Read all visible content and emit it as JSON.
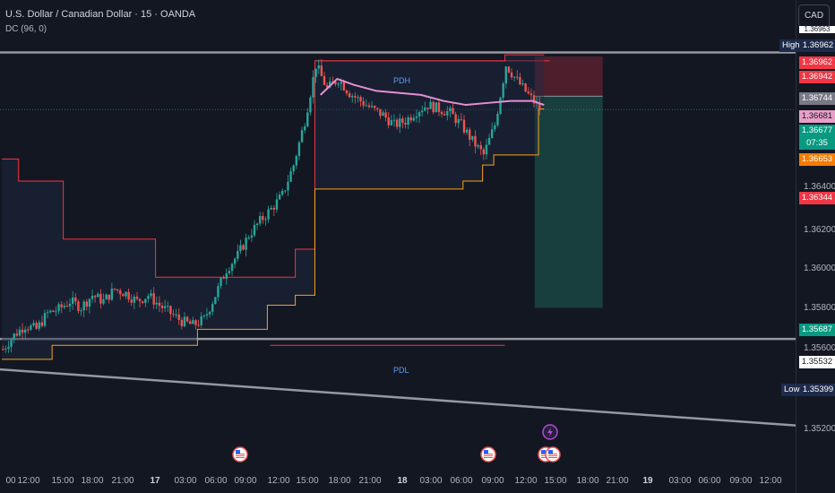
{
  "header": {
    "title": "U.S. Dollar / Canadian Dollar · 15 · OANDA",
    "indicator": "DC (96, 0)"
  },
  "currency_button": "CAD",
  "y_axis_ticks": [
    "1.36400",
    "1.36200",
    "1.36000",
    "1.35800",
    "1.35600",
    "1.35200"
  ],
  "price_tags": {
    "top_partial": "1.36963",
    "high_label": "High",
    "high_value": "1.36962",
    "t1": "1.36962",
    "t2": "1.36942",
    "t3": "1.36744",
    "t4": "1.36681",
    "last": "1.36677",
    "countdown": "07:35",
    "t6": "1.36653",
    "t7": "1.36344",
    "t8": "1.35687",
    "t9": "1.35532",
    "low_label": "Low",
    "low_value": "1.35399"
  },
  "x_axis_ticks": [
    {
      "label": "00",
      "bold": false
    },
    {
      "label": "12:00",
      "bold": false
    },
    {
      "label": "15:00",
      "bold": false
    },
    {
      "label": "18:00",
      "bold": false
    },
    {
      "label": "21:00",
      "bold": false
    },
    {
      "label": "17",
      "bold": true
    },
    {
      "label": "03:00",
      "bold": false
    },
    {
      "label": "06:00",
      "bold": false
    },
    {
      "label": "09:00",
      "bold": false
    },
    {
      "label": "12:00",
      "bold": false
    },
    {
      "label": "15:00",
      "bold": false
    },
    {
      "label": "18:00",
      "bold": false
    },
    {
      "label": "21:00",
      "bold": false
    },
    {
      "label": "18",
      "bold": true
    },
    {
      "label": "03:00",
      "bold": false
    },
    {
      "label": "06:00",
      "bold": false
    },
    {
      "label": "09:00",
      "bold": false
    },
    {
      "label": "12:00",
      "bold": false
    },
    {
      "label": "15:00",
      "bold": false
    },
    {
      "label": "18:00",
      "bold": false
    },
    {
      "label": "21:00",
      "bold": false
    },
    {
      "label": "19",
      "bold": true
    },
    {
      "label": "03:00",
      "bold": false
    },
    {
      "label": "06:00",
      "bold": false
    },
    {
      "label": "09:00",
      "bold": false
    },
    {
      "label": "12:00",
      "bold": false
    }
  ],
  "annotations": {
    "pdh": "PDH",
    "pdl": "PDL"
  },
  "colors": {
    "background": "#131722",
    "up": "#26a69a",
    "down": "#ef5350",
    "donchian_upper": "#f23645",
    "donchian_lower": "#f7a21b",
    "basis": "#e58fd1",
    "level_line": "#9598a1",
    "pdh_pdl": "#f23645",
    "label_blue": "#5b9cf6",
    "stop_zone": "#5c2030",
    "target_zone": "#1a4a45",
    "orange_tag": "#f57c00",
    "teal_tag": "#089981",
    "red_tag": "#f23645",
    "grey_tag": "#787b86",
    "pink_tag": "#e8a0c8"
  },
  "event_icons": [
    "us-flag-icon",
    "us-flag-icon",
    "us-flag-icon",
    "lightning-icon",
    "us-flag-icon"
  ],
  "chart_data": {
    "type": "candlestick",
    "instrument": "U.S. Dollar / Canadian Dollar",
    "timeframe": "15",
    "source": "OANDA",
    "x_start": "16 00:00",
    "ylim": [
      1.3505,
      1.3705
    ],
    "y_ticks": [
      1.364,
      1.362,
      1.36,
      1.358,
      1.356,
      1.352
    ],
    "close_path": [
      [
        0,
        1.3548
      ],
      [
        4,
        1.3555
      ],
      [
        8,
        1.356
      ],
      [
        12,
        1.3558
      ],
      [
        16,
        1.3566
      ],
      [
        20,
        1.3568
      ],
      [
        24,
        1.3572
      ],
      [
        28,
        1.3569
      ],
      [
        32,
        1.3575
      ],
      [
        36,
        1.3572
      ],
      [
        40,
        1.3578
      ],
      [
        44,
        1.3576
      ],
      [
        48,
        1.3572
      ],
      [
        52,
        1.3575
      ],
      [
        56,
        1.357
      ],
      [
        60,
        1.3566
      ],
      [
        64,
        1.3562
      ],
      [
        68,
        1.356
      ],
      [
        72,
        1.3563
      ],
      [
        76,
        1.3575
      ],
      [
        80,
        1.3588
      ],
      [
        84,
        1.3595
      ],
      [
        88,
        1.3605
      ],
      [
        92,
        1.3612
      ],
      [
        96,
        1.3618
      ],
      [
        100,
        1.3625
      ],
      [
        104,
        1.364
      ],
      [
        108,
        1.3662
      ],
      [
        112,
        1.369
      ],
      [
        116,
        1.3678
      ],
      [
        120,
        1.3683
      ],
      [
        124,
        1.3676
      ],
      [
        128,
        1.3672
      ],
      [
        132,
        1.3668
      ],
      [
        136,
        1.3665
      ],
      [
        140,
        1.366
      ],
      [
        144,
        1.3662
      ],
      [
        148,
        1.3667
      ],
      [
        152,
        1.367
      ],
      [
        156,
        1.3668
      ],
      [
        160,
        1.3666
      ],
      [
        164,
        1.366
      ],
      [
        168,
        1.3652
      ],
      [
        172,
        1.3645
      ],
      [
        176,
        1.366
      ],
      [
        180,
        1.369
      ],
      [
        184,
        1.3682
      ],
      [
        188,
        1.3675
      ],
      [
        192,
        1.3668
      ]
    ],
    "donchian_upper": [
      [
        0,
        1.3643
      ],
      [
        6,
        1.3632
      ],
      [
        22,
        1.3603
      ],
      [
        55,
        1.3584
      ],
      [
        105,
        1.3598
      ],
      [
        112,
        1.3692
      ],
      [
        180,
        1.3695
      ],
      [
        192,
        1.3695
      ]
    ],
    "donchian_lower": [
      [
        0,
        1.3543
      ],
      [
        18,
        1.355
      ],
      [
        70,
        1.3558
      ],
      [
        95,
        1.357
      ],
      [
        105,
        1.3575
      ],
      [
        112,
        1.3628
      ],
      [
        165,
        1.3632
      ],
      [
        172,
        1.364
      ],
      [
        176,
        1.3645
      ],
      [
        192,
        1.3668
      ]
    ],
    "basis_points": [
      [
        114,
        1.3675
      ],
      [
        120,
        1.3683
      ],
      [
        126,
        1.368
      ],
      [
        134,
        1.3677
      ],
      [
        142,
        1.3676
      ],
      [
        150,
        1.3675
      ],
      [
        158,
        1.3672
      ],
      [
        166,
        1.367
      ],
      [
        174,
        1.3671
      ],
      [
        182,
        1.3672
      ],
      [
        190,
        1.3672
      ],
      [
        194,
        1.367
      ]
    ],
    "pdh": 1.3692,
    "pdl": 1.355,
    "horizontal_levels": [
      1.36962,
      1.35532
    ],
    "trendline": [
      [
        0,
        1.3538
      ],
      [
        284,
        1.351
      ]
    ],
    "position": {
      "entry": 1.36744,
      "stop": 1.36942,
      "target": 1.35687,
      "start_bar": 190,
      "end_bar": 214
    },
    "high": 1.36962,
    "low": 1.35399,
    "last_price": 1.36677,
    "countdown": "07:35"
  }
}
